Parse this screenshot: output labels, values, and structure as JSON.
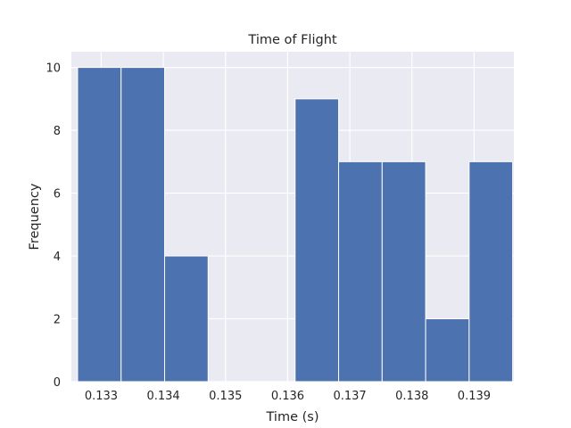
{
  "chart_data": {
    "type": "bar",
    "title": "Time of Flight",
    "xlabel": "Time (s)",
    "ylabel": "Frequency",
    "xlim": [
      0.13252,
      0.13964
    ],
    "ylim": [
      0,
      10.5
    ],
    "bin_edges": [
      0.13262,
      0.13332,
      0.13402,
      0.13472,
      0.13542,
      0.13612,
      0.13682,
      0.13752,
      0.13822,
      0.13892,
      0.13962
    ],
    "values": [
      10,
      10,
      4,
      0,
      0,
      9,
      7,
      7,
      2,
      7
    ],
    "xticks": [
      {
        "value": 0.133,
        "label": "0.133"
      },
      {
        "value": 0.134,
        "label": "0.134"
      },
      {
        "value": 0.135,
        "label": "0.135"
      },
      {
        "value": 0.136,
        "label": "0.136"
      },
      {
        "value": 0.137,
        "label": "0.137"
      },
      {
        "value": 0.138,
        "label": "0.138"
      },
      {
        "value": 0.139,
        "label": "0.139"
      }
    ],
    "yticks": [
      {
        "value": 0,
        "label": "0"
      },
      {
        "value": 2,
        "label": "2"
      },
      {
        "value": 4,
        "label": "4"
      },
      {
        "value": 6,
        "label": "6"
      },
      {
        "value": 8,
        "label": "8"
      },
      {
        "value": 10,
        "label": "10"
      }
    ],
    "grid": true,
    "colors": {
      "bar": "#4c72b0",
      "background": "#eaeaf2",
      "grid": "#ffffff"
    }
  }
}
